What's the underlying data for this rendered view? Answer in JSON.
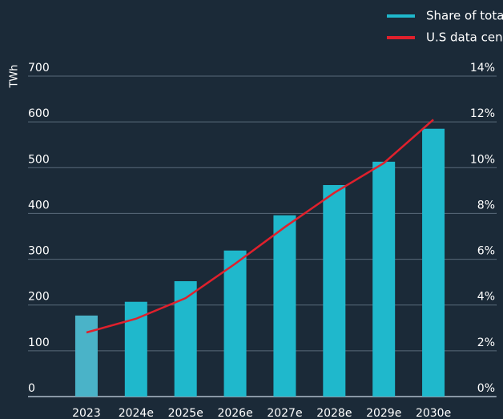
{
  "chart_data": {
    "type": "bar_line",
    "y_label": "TWh",
    "categories": [
      "2023",
      "2024e",
      "2025e",
      "2026e",
      "2027e",
      "2028e",
      "2029e",
      "2030e"
    ],
    "series": [
      {
        "name": "Share of total US power demand (%)",
        "type": "bar",
        "color": "#1fb8cc",
        "colors": [
          "#4ab3c8",
          "#1fb8cc",
          "#1fb8cc",
          "#1fb8cc",
          "#1fb8cc",
          "#1fb8cc",
          "#1fb8cc",
          "#1fb8cc"
        ],
        "values": [
          177,
          207,
          252,
          319,
          396,
          462,
          513,
          585
        ]
      },
      {
        "name": "U.S data center energy consumption",
        "type": "line",
        "color": "#e0202c",
        "axis": "y2",
        "values": [
          2.8,
          3.4,
          4.3,
          5.8,
          7.4,
          8.9,
          10.2,
          12.1
        ]
      }
    ],
    "ylim": [
      0,
      700
    ],
    "yticks": [
      0,
      100,
      200,
      300,
      400,
      500,
      600,
      700
    ],
    "y2lim": [
      0,
      14
    ],
    "y2ticks": [
      {
        "value": 0,
        "label": "0%"
      },
      {
        "value": 2,
        "label": "2%"
      },
      {
        "value": 4,
        "label": "4%"
      },
      {
        "value": 6,
        "label": "6%"
      },
      {
        "value": 8,
        "label": "8%"
      },
      {
        "value": 10,
        "label": "10%"
      },
      {
        "value": 12,
        "label": "12%"
      },
      {
        "value": 14,
        "label": "14%"
      }
    ],
    "grid": true,
    "legend": "top-right"
  }
}
